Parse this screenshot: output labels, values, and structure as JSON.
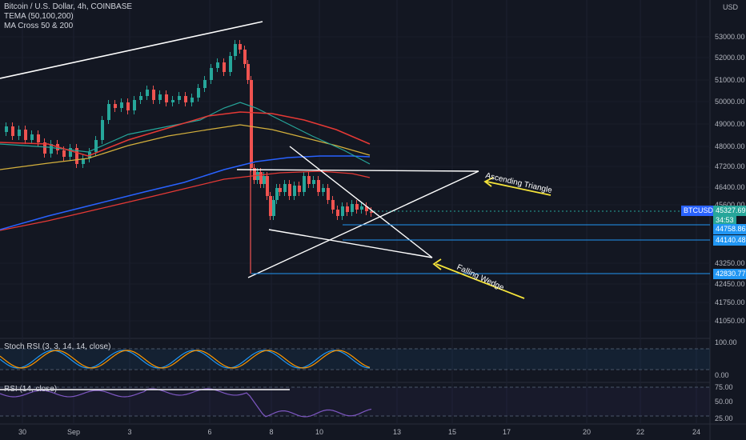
{
  "legend": {
    "title": "Bitcoin / U.S. Dollar, 4h, COINBASE",
    "indicator1": "TEMA (50,100,200)",
    "indicator2": "MA Cross 50 & 200"
  },
  "price_axis": {
    "currency": "USD",
    "ticks": [
      "53000.00",
      "52000.00",
      "51000.00",
      "50000.00",
      "49000.00",
      "48000.00",
      "47200.00",
      "46400.00",
      "45600.00",
      "43250.00",
      "42450.00",
      "41750.00",
      "41050.00"
    ]
  },
  "price_labels": {
    "symbol": "BTCUSD",
    "current": "45327.69",
    "countdown": "34:53",
    "level1": "44758.86",
    "level2": "44140.48",
    "level3": "42830.77"
  },
  "time_axis": {
    "ticks": [
      "30",
      "Sep",
      "3",
      "6",
      "8",
      "10",
      "13",
      "15",
      "17",
      "20",
      "22",
      "24"
    ]
  },
  "annotations": {
    "ascending": "Ascending Triangle",
    "falling": "Falling Wedge"
  },
  "stoch": {
    "label": "Stoch RSI (3, 3, 14, 14, close)",
    "ticks": [
      "100.00",
      "0.00"
    ]
  },
  "rsi": {
    "label": "RSI (14, close)",
    "ticks": [
      "75.00",
      "50.00",
      "25.00"
    ]
  },
  "colors": {
    "background": "#131722",
    "up": "#26a69a",
    "down": "#ef5350",
    "ma_blue": "#2962ff",
    "tema_red": "#e53935",
    "tema_green": "#26a69a",
    "tema_yellow": "#d4b03c",
    "level_line": "#2196f3",
    "arrow": "#f5e43a",
    "stoch_k": "#2196f3",
    "stoch_d": "#ff9800",
    "rsi_line": "#7e57c2"
  }
}
